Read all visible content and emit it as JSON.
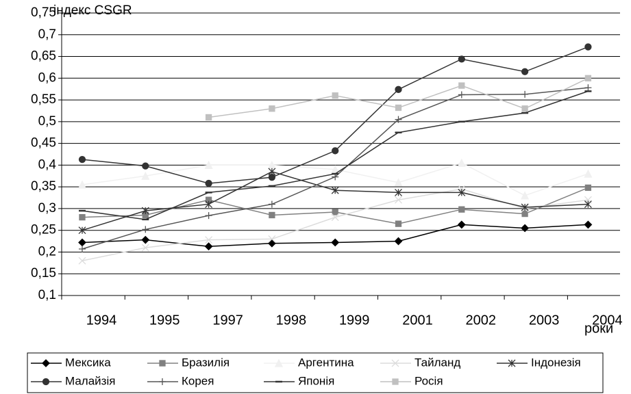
{
  "chart_data": {
    "type": "line",
    "y_label": "індекс CSGR",
    "x_label": "роки",
    "categories": [
      "1994",
      "1995",
      "1997",
      "1998",
      "1999",
      "2001",
      "2002",
      "2003",
      "2004"
    ],
    "ylim": [
      0.1,
      0.75
    ],
    "yticks": [
      {
        "value": 0.1,
        "label": "0,1"
      },
      {
        "value": 0.15,
        "label": "0,15"
      },
      {
        "value": 0.2,
        "label": "0,2"
      },
      {
        "value": 0.25,
        "label": "0,25"
      },
      {
        "value": 0.3,
        "label": "0,3"
      },
      {
        "value": 0.35,
        "label": "0,35"
      },
      {
        "value": 0.4,
        "label": "0,4"
      },
      {
        "value": 0.45,
        "label": "0,45"
      },
      {
        "value": 0.5,
        "label": "0,5"
      },
      {
        "value": 0.55,
        "label": "0,55"
      },
      {
        "value": 0.6,
        "label": "0,6"
      },
      {
        "value": 0.65,
        "label": "0,65"
      },
      {
        "value": 0.7,
        "label": "0,7"
      },
      {
        "value": 0.75,
        "label": "0,75"
      }
    ],
    "grid": true,
    "legend": "bottom",
    "series": [
      {
        "name": "Мексика",
        "color": "#000000",
        "marker": "diamond",
        "values": [
          0.222,
          0.228,
          0.213,
          0.22,
          0.222,
          0.225,
          0.263,
          0.255,
          0.263
        ]
      },
      {
        "name": "Бразилія",
        "color": "#808080",
        "marker": "square",
        "values": [
          0.28,
          0.285,
          0.32,
          0.285,
          0.292,
          0.265,
          0.298,
          0.288,
          0.348
        ]
      },
      {
        "name": "Аргентина",
        "color": "#f0f0f0",
        "marker": "triangle",
        "values": [
          0.355,
          0.375,
          0.4,
          0.4,
          0.39,
          0.36,
          0.405,
          0.33,
          0.38
        ]
      },
      {
        "name": "Тайланд",
        "color": "#dcdcdc",
        "marker": "x",
        "values": [
          0.18,
          0.21,
          0.228,
          0.23,
          0.28,
          0.32,
          0.345,
          0.3,
          0.32
        ]
      },
      {
        "name": "Індонезія",
        "color": "#333333",
        "marker": "asterisk",
        "values": [
          0.25,
          0.295,
          0.31,
          0.385,
          0.342,
          0.337,
          0.337,
          0.303,
          0.31
        ]
      },
      {
        "name": "Малайзія",
        "color": "#333333",
        "marker": "circle",
        "values": [
          0.413,
          0.398,
          0.358,
          0.372,
          0.433,
          0.574,
          0.644,
          0.615,
          0.672
        ]
      },
      {
        "name": "Корея",
        "color": "#555555",
        "marker": "plus",
        "values": [
          0.207,
          0.252,
          0.284,
          0.31,
          0.373,
          0.505,
          0.562,
          0.563,
          0.578
        ]
      },
      {
        "name": "Японія",
        "color": "#333333",
        "marker": "dash",
        "values": [
          0.295,
          0.275,
          0.337,
          0.352,
          0.38,
          0.475,
          0.5,
          0.52,
          0.57
        ]
      },
      {
        "name": "Росія",
        "color": "#c0c0c0",
        "marker": "square",
        "values": [
          null,
          null,
          0.51,
          0.53,
          0.56,
          0.532,
          0.583,
          0.53,
          0.6
        ]
      }
    ]
  }
}
